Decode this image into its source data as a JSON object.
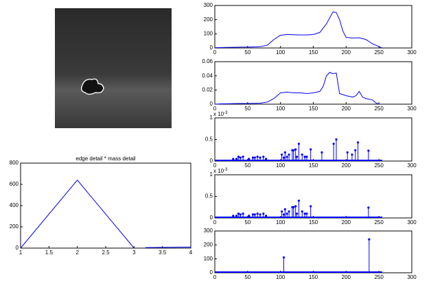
{
  "chart_data": [
    {
      "type": "line",
      "title": "edge detail * mass detail",
      "color": "#0000ff",
      "x": [
        1,
        2,
        3,
        3.1,
        3.2,
        4
      ],
      "values": [
        0,
        640,
        0,
        null,
        5,
        10
      ],
      "xlim": [
        1,
        4
      ],
      "xticks": [
        1,
        1.5,
        2,
        2.5,
        3,
        3.5,
        4
      ],
      "ylim": [
        0,
        800
      ],
      "yticks": [
        0,
        200,
        400,
        600,
        800
      ]
    },
    {
      "type": "line",
      "color": "#0000ff",
      "x": [
        0,
        10,
        20,
        30,
        40,
        50,
        60,
        70,
        80,
        90,
        100,
        110,
        120,
        130,
        140,
        150,
        160,
        170,
        180,
        185,
        190,
        195,
        200,
        210,
        220,
        230,
        240,
        250,
        255
      ],
      "values": [
        2,
        3,
        4,
        5,
        6,
        6,
        8,
        10,
        20,
        60,
        90,
        95,
        93,
        92,
        92,
        95,
        110,
        170,
        255,
        250,
        200,
        120,
        75,
        70,
        72,
        60,
        30,
        10,
        0
      ],
      "xlim": [
        0,
        300
      ],
      "xticks": [
        0,
        50,
        100,
        150,
        200,
        250,
        300
      ],
      "ylim": [
        0,
        300
      ],
      "yticks": [
        0,
        100,
        200,
        300
      ]
    },
    {
      "type": "line",
      "color": "#0000ff",
      "x": [
        0,
        10,
        20,
        30,
        40,
        50,
        60,
        70,
        80,
        90,
        100,
        110,
        120,
        130,
        140,
        150,
        160,
        165,
        170,
        175,
        180,
        185,
        190,
        200,
        210,
        215,
        220,
        225,
        230,
        240,
        245,
        250
      ],
      "values": [
        0,
        0.0005,
        0.0006,
        0.0008,
        0.001,
        0.001,
        0.0012,
        0.0015,
        0.003,
        0.008,
        0.016,
        0.017,
        0.016,
        0.016,
        0.015,
        0.016,
        0.018,
        0.025,
        0.04,
        0.045,
        0.043,
        0.044,
        0.015,
        0.012,
        0.01,
        0.012,
        0.018,
        0.01,
        0.008,
        0.006,
        0.002,
        0
      ],
      "xlim": [
        0,
        300
      ],
      "xticks": [
        0,
        50,
        100,
        150,
        200,
        250,
        300
      ],
      "ylim": [
        0,
        0.06
      ],
      "yticks": [
        0,
        0.02,
        0.04,
        0.06
      ]
    },
    {
      "type": "stem",
      "color": "#0000ff",
      "y_exponent_base": "x 10",
      "y_exponent_power": "-3",
      "x": [
        28,
        33,
        36,
        39,
        43,
        52,
        58,
        61,
        65,
        69,
        74,
        78,
        102,
        105,
        107,
        110,
        113,
        118,
        120,
        123,
        125,
        128,
        133,
        137,
        140,
        146,
        163,
        181,
        185,
        202,
        209,
        214,
        218,
        234
      ],
      "values": [
        0.05,
        0.05,
        0.1,
        0.08,
        0.1,
        0.05,
        0.08,
        0.08,
        0.1,
        0.08,
        0.1,
        0.05,
        0.15,
        0.08,
        0.2,
        0.1,
        0.15,
        0.25,
        0.25,
        0.27,
        0.1,
        0.4,
        0.15,
        0.1,
        0.1,
        0.27,
        0.2,
        0.4,
        0.5,
        0.2,
        0.15,
        0.25,
        0.43,
        0.24
      ],
      "xlim": [
        0,
        300
      ],
      "xticks": [
        0,
        50,
        100,
        150,
        200,
        250,
        300
      ],
      "ylim": [
        0,
        1
      ],
      "yticks": [
        0,
        0.5,
        1
      ]
    },
    {
      "type": "stem",
      "color": "#0000ff",
      "y_exponent_base": "x 10",
      "y_exponent_power": "-3",
      "x": [
        28,
        33,
        36,
        39,
        43,
        52,
        58,
        61,
        65,
        69,
        74,
        78,
        102,
        105,
        107,
        110,
        113,
        118,
        120,
        123,
        125,
        128,
        133,
        137,
        140,
        146,
        234
      ],
      "values": [
        0.05,
        0.05,
        0.1,
        0.08,
        0.1,
        0.05,
        0.08,
        0.08,
        0.1,
        0.08,
        0.1,
        0.05,
        0.15,
        0.08,
        0.2,
        0.1,
        0.15,
        0.25,
        0.25,
        0.27,
        0.1,
        0.4,
        0.15,
        0.1,
        0.1,
        0.27,
        0.24
      ],
      "xlim": [
        0,
        300
      ],
      "xticks": [
        0,
        50,
        100,
        150,
        200,
        250,
        300
      ],
      "ylim": [
        0,
        1
      ],
      "yticks": [
        0,
        0.5,
        1
      ]
    },
    {
      "type": "stem",
      "color": "#0000ff",
      "x": [
        105,
        235
      ],
      "values": [
        110,
        240
      ],
      "xlim": [
        0,
        300
      ],
      "xticks": [
        0,
        50,
        100,
        150,
        200,
        250,
        300
      ],
      "ylim": [
        0,
        300
      ],
      "yticks": [
        0,
        100,
        200,
        300
      ]
    }
  ]
}
